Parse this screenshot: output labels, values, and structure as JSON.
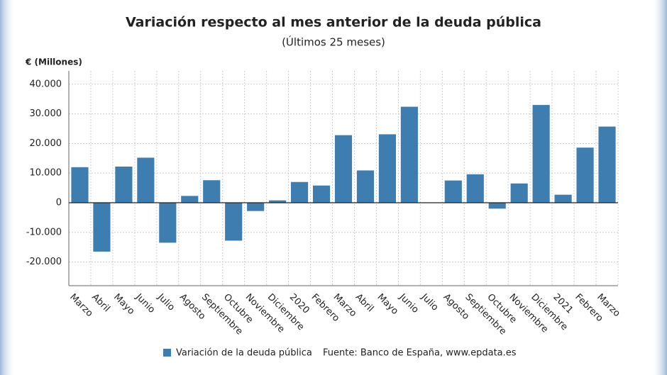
{
  "chart_data": {
    "type": "bar",
    "title": "Variación respecto al mes anterior de la deuda pública",
    "subtitle": "(Últimos 25 meses)",
    "y_label": "€ (Millones)",
    "categories": [
      "Marzo",
      "Abril",
      "Mayo",
      "Junio",
      "Julio",
      "Agosto",
      "Septiembre",
      "Octubre",
      "Noviembre",
      "Diciembre",
      "2020",
      "Febrero",
      "Marzo",
      "Abril",
      "Mayo",
      "Junio",
      "Julio",
      "Agosto",
      "Septiembre",
      "Octubre",
      "Noviembre",
      "Diciembre",
      "2021",
      "Febrero",
      "Marzo"
    ],
    "series": [
      {
        "name": "Variación de la deuda pública",
        "color": "#3d7db0",
        "values": [
          12000,
          -16500,
          12200,
          15200,
          -13500,
          2300,
          7600,
          -12800,
          -2800,
          800,
          7000,
          5800,
          22800,
          10900,
          23100,
          32400,
          0,
          7500,
          9600,
          -2000,
          6500,
          33000,
          2700,
          18600,
          25700
        ]
      }
    ],
    "ylim": [
      -28000,
      44500
    ],
    "yticks": [
      {
        "value": -20000,
        "label": "-20.000"
      },
      {
        "value": -10000,
        "label": "-10.000"
      },
      0,
      {
        "value": 10000,
        "label": "10.000"
      },
      {
        "value": 20000,
        "label": "20.000"
      },
      {
        "value": 30000,
        "label": "30.000"
      },
      {
        "value": 40000,
        "label": "40.000"
      }
    ],
    "grid": true,
    "source": "Fuente: Banco de España, www.epdata.es"
  }
}
